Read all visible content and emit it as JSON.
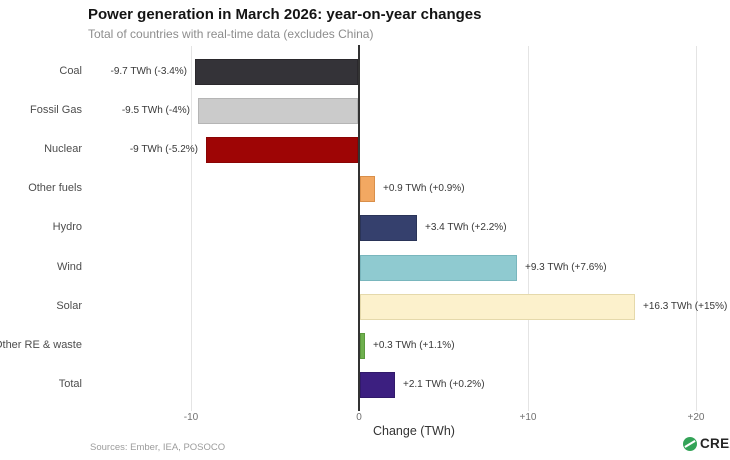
{
  "chart_data": {
    "type": "bar",
    "orientation": "horizontal",
    "title": "Power generation in March 2026: year-on-year changes",
    "subtitle": "Total of countries with real-time data (excludes China)",
    "xlabel": "Change (TWh)",
    "xlim": [
      -16,
      22
    ],
    "grid": true,
    "legend": "none",
    "x_ticks": [
      {
        "value": -10,
        "label": "-10"
      },
      {
        "value": 0,
        "label": "0"
      },
      {
        "value": 10,
        "label": "+10"
      },
      {
        "value": 20,
        "label": "+20"
      }
    ],
    "categories": [
      "Coal",
      "Fossil Gas",
      "Nuclear",
      "Other fuels",
      "Hydro",
      "Wind",
      "Solar",
      "Other RE & waste",
      "Total"
    ],
    "values": [
      -9.7,
      -9.5,
      -9,
      0.9,
      3.4,
      9.3,
      16.3,
      0.3,
      2.1
    ],
    "value_labels": [
      "-9.7 TWh (-3.4%)",
      "-9.5 TWh (-4%)",
      "-9 TWh (-5.2%)",
      "+0.9 TWh (+0.9%)",
      "+3.4 TWh (+2.2%)",
      "+9.3 TWh (+7.6%)",
      "+16.3 TWh (+15%)",
      "+0.3 TWh (+1.1%)",
      "+2.1 TWh (+0.2%)"
    ],
    "bar_colors": [
      "#343338",
      "#cbcbcb",
      "#9e0505",
      "#f2a862",
      "#35406d",
      "#8fcad0",
      "#fcf1cc",
      "#6fb04e",
      "#3c1f80"
    ],
    "bar_border_colors": [
      "#2a282c",
      "#b5b5b5",
      "#8a0404",
      "#d98f4a",
      "#2a3458",
      "#79b6bd",
      "#e5d9ab",
      "#5c9a3e",
      "#311a6a"
    ]
  },
  "footer": {
    "sources": "Sources: Ember, IEA, POSOCO",
    "logo_text": "CREA",
    "logo_color": "#33a357"
  }
}
